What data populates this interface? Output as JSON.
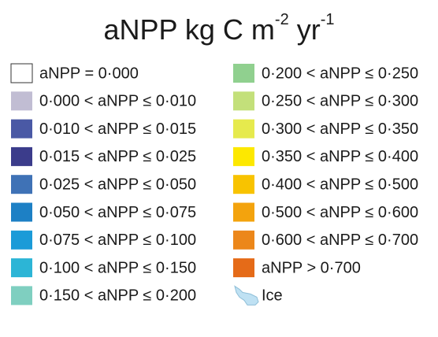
{
  "title": {
    "base1": "aNPP kg C m",
    "exp1": "-2",
    "base2": " yr",
    "exp2": "-1"
  },
  "columns": [
    {
      "items": [
        {
          "label": "aNPP = 0·000",
          "color": "#ffffff"
        },
        {
          "label": "0·000 < aNPP ≤ 0·010",
          "color": "#c1bdd3"
        },
        {
          "label": "0·010 < aNPP ≤ 0·015",
          "color": "#4a59a5"
        },
        {
          "label": "0·015 < aNPP ≤ 0·025",
          "color": "#3b3c8b"
        },
        {
          "label": "0·025 < aNPP ≤ 0·050",
          "color": "#3f72b6"
        },
        {
          "label": "0·050 < aNPP ≤ 0·075",
          "color": "#1d80c5"
        },
        {
          "label": "0·075 < aNPP ≤ 0·100",
          "color": "#1b9bd8"
        },
        {
          "label": "0·100 < aNPP ≤ 0·150",
          "color": "#2cb5d6"
        },
        {
          "label": "0·150 < aNPP ≤ 0·200",
          "color": "#7fcfc0"
        }
      ]
    },
    {
      "items": [
        {
          "label": "0·200 < aNPP ≤ 0·250",
          "color": "#90d08f"
        },
        {
          "label": "0·250 < aNPP ≤ 0·300",
          "color": "#c3e07a"
        },
        {
          "label": "0·300 < aNPP ≤ 0·350",
          "color": "#e6ea4d"
        },
        {
          "label": "0·350 < aNPP ≤ 0·400",
          "color": "#fde800"
        },
        {
          "label": "0·400 < aNPP ≤ 0·500",
          "color": "#f8c300"
        },
        {
          "label": "0·500 < aNPP ≤ 0·600",
          "color": "#f3a30d"
        },
        {
          "label": "0·600 < aNPP ≤ 0·700",
          "color": "#ec871a"
        },
        {
          "label": "aNPP > 0·700",
          "color": "#e56b18"
        },
        {
          "label": "Ice",
          "color": "#bfe1f3",
          "icon": "ice"
        }
      ]
    }
  ]
}
